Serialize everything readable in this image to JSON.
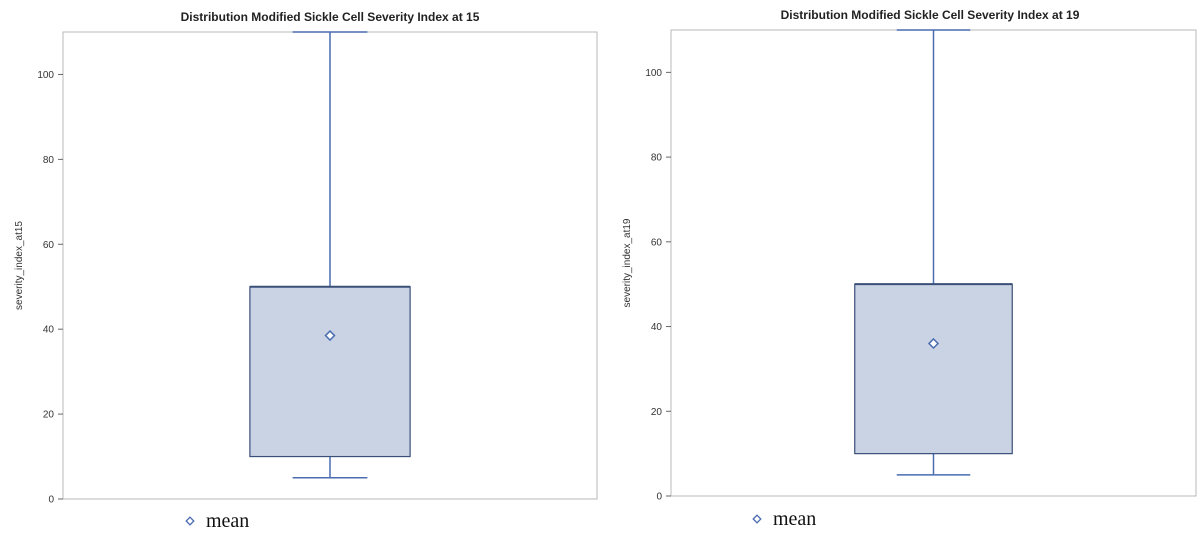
{
  "chart_data": [
    {
      "type": "box",
      "title": "Distribution Modified Sickle Cell Severity Index at 15",
      "xlabel": "",
      "ylabel": "severity_index_at15",
      "ylim": [
        0,
        110
      ],
      "yticks": [
        0,
        20,
        40,
        60,
        80,
        100
      ],
      "box": {
        "min": 5,
        "q1": 10,
        "median": 50,
        "q3": 50,
        "max": 110,
        "mean": 38.5
      },
      "colors": {
        "box_fill": "#c9d3e4",
        "box_edge": "#3a4f78",
        "whisker": "#4a6cb0",
        "frame": "#b8b8b8"
      },
      "legend": {
        "label": "mean",
        "marker": "diamond-icon",
        "placement": "bottom-left"
      }
    },
    {
      "type": "box",
      "title": "Distribution Modified Sickle Cell Severity Index at 19",
      "xlabel": "",
      "ylabel": "severity_index_at19",
      "ylim": [
        0,
        110
      ],
      "yticks": [
        0,
        20,
        40,
        60,
        80,
        100
      ],
      "box": {
        "min": 5,
        "q1": 10,
        "median": 50,
        "q3": 50,
        "max": 110,
        "mean": 36
      },
      "colors": {
        "box_fill": "#c9d3e4",
        "box_edge": "#3a4f78",
        "whisker": "#4a6cb0",
        "frame": "#b8b8b8"
      },
      "legend": {
        "label": "mean",
        "marker": "diamond-icon",
        "placement": "bottom-left"
      }
    }
  ]
}
